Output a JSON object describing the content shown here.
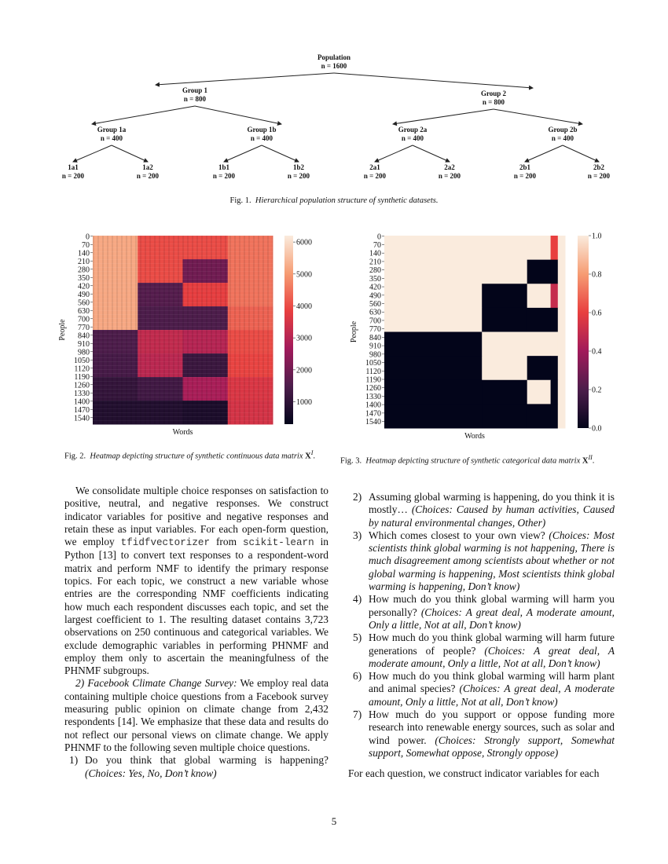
{
  "fig1": {
    "nodes": [
      {
        "id": "pop",
        "name": "Population",
        "n": "n = 1600"
      },
      {
        "id": "g1",
        "name": "Group 1",
        "n": "n = 800"
      },
      {
        "id": "g2",
        "name": "Group 2",
        "n": "n = 800"
      },
      {
        "id": "g1a",
        "name": "Group 1a",
        "n": "n = 400"
      },
      {
        "id": "g1b",
        "name": "Group 1b",
        "n": "n = 400"
      },
      {
        "id": "g2a",
        "name": "Group 2a",
        "n": "n = 400"
      },
      {
        "id": "g2b",
        "name": "Group 2b",
        "n": "n = 400"
      },
      {
        "id": "1a1",
        "name": "1a1",
        "n": "n = 200"
      },
      {
        "id": "1a2",
        "name": "1a2",
        "n": "n = 200"
      },
      {
        "id": "1b1",
        "name": "1b1",
        "n": "n = 200"
      },
      {
        "id": "1b2",
        "name": "1b2",
        "n": "n = 200"
      },
      {
        "id": "2a1",
        "name": "2a1",
        "n": "n = 200"
      },
      {
        "id": "2a2",
        "name": "2a2",
        "n": "n = 200"
      },
      {
        "id": "2b1",
        "name": "2b1",
        "n": "n = 200"
      },
      {
        "id": "2b2",
        "name": "2b2",
        "n": "n = 200"
      }
    ],
    "edges": [
      [
        "pop",
        "g1"
      ],
      [
        "pop",
        "g2"
      ],
      [
        "g1",
        "g1a"
      ],
      [
        "g1",
        "g1b"
      ],
      [
        "g2",
        "g2a"
      ],
      [
        "g2",
        "g2b"
      ],
      [
        "g1a",
        "1a1"
      ],
      [
        "g1a",
        "1a2"
      ],
      [
        "g1b",
        "1b1"
      ],
      [
        "g1b",
        "1b2"
      ],
      [
        "g2a",
        "2a1"
      ],
      [
        "g2a",
        "2a2"
      ],
      [
        "g2b",
        "2b1"
      ],
      [
        "g2b",
        "2b2"
      ]
    ],
    "caption_label": "Fig. 1.",
    "caption_text": "Hierarchical population structure of synthetic datasets."
  },
  "chart_data": [
    {
      "type": "heatmap",
      "title": "",
      "xlabel": "Words",
      "ylabel": "People",
      "yticks": [
        "0",
        "70",
        "140",
        "210",
        "280",
        "350",
        "420",
        "490",
        "560",
        "630",
        "700",
        "770",
        "840",
        "910",
        "980",
        "1050",
        "1120",
        "1190",
        "1260",
        "1330",
        "1400",
        "1470",
        "1540"
      ],
      "colorbar_ticks": [
        "6000",
        "5000",
        "4000",
        "3000",
        "2000",
        "1000"
      ],
      "colorbar_range": [
        300,
        6200
      ],
      "row_bands": [
        0,
        200,
        400,
        600,
        800,
        1000,
        1200,
        1400,
        1600
      ],
      "col_bands_fraction": [
        0,
        0.25,
        0.5,
        0.75,
        1
      ],
      "values": [
        [
          5200,
          4000,
          4000,
          4500
        ],
        [
          5200,
          4000,
          2000,
          4500
        ],
        [
          5200,
          1600,
          3800,
          4500
        ],
        [
          5200,
          1500,
          1500,
          4300
        ],
        [
          1500,
          3200,
          3000,
          4000
        ],
        [
          1400,
          3100,
          1200,
          3900
        ],
        [
          1100,
          1300,
          2800,
          3600
        ],
        [
          800,
          800,
          700,
          3500
        ]
      ],
      "caption_label": "Fig. 2.",
      "caption_text": "Heatmap depicting structure of synthetic continuous data matrix ",
      "caption_symbol": "X",
      "caption_sup": "I"
    },
    {
      "type": "heatmap",
      "title": "",
      "xlabel": "Words",
      "ylabel": "People",
      "yticks": [
        "0",
        "70",
        "140",
        "210",
        "280",
        "350",
        "420",
        "490",
        "560",
        "630",
        "700",
        "770",
        "840",
        "910",
        "980",
        "1050",
        "1120",
        "1190",
        "1260",
        "1330",
        "1400",
        "1470",
        "1540"
      ],
      "colorbar_ticks": [
        "1.0",
        "0.8",
        "0.6",
        "0.4",
        "0.2",
        "0.0"
      ],
      "colorbar_range": [
        0,
        1
      ],
      "row_bands": [
        0,
        200,
        400,
        600,
        800,
        1000,
        1200,
        1400,
        1600
      ],
      "col_bands_fraction": [
        0,
        0.54,
        0.79,
        0.92,
        0.96,
        1
      ],
      "values": [
        [
          1,
          1,
          1,
          0.6,
          1
        ],
        [
          1,
          1,
          0,
          0,
          1
        ],
        [
          1,
          0,
          1,
          0.5,
          1
        ],
        [
          1,
          0,
          0,
          0,
          1
        ],
        [
          0,
          1,
          1,
          1,
          1
        ],
        [
          0,
          1,
          0,
          0,
          1
        ],
        [
          0,
          0,
          1,
          0,
          1
        ],
        [
          0,
          0,
          0,
          0,
          1
        ]
      ],
      "caption_label": "Fig. 3.",
      "caption_text": "Heatmap depicting structure of synthetic categorical data matrix ",
      "caption_symbol": "X",
      "caption_sup": "II"
    }
  ],
  "left_column": {
    "p1_a": "We consolidate multiple choice responses on satisfaction to positive, neutral, and negative responses. We construct indicator variables for positive and negative responses and retain these as input variables. For each open-form question, we employ ",
    "p1_code1": "tfidfvectorizer",
    "p1_b": " from ",
    "p1_code2": "scikit-learn",
    "p1_c": " in Python [13] to convert text responses to a respondent-word matrix and perform NMF to identify the primary response topics. For each topic, we construct a new variable whose entries are the corresponding NMF coefficients indicating how much each respondent discusses each topic, and set the largest coefficient to 1. The resulting dataset contains 3,723 observations on 250 continuous and categorical variables. We exclude demographic variables in performing PHNMF and employ them only to ascertain the meaningfulness of the PHNMF subgroups.",
    "p2_heading": "2) Facebook Climate Change Survey:",
    "p2_text": " We employ real data containing multiple choice questions from a Facebook survey measuring public opinion on climate change from 2,432 respondents [14]. We emphasize that these data and results do not reflect our personal views on climate change. We apply PHNMF to the following seven multiple choice questions."
  },
  "questions": [
    {
      "num": "1)",
      "text": "Do you think that global warming is happening? ",
      "choices": "(Choices: Yes, No, Don’t know)"
    },
    {
      "num": "2)",
      "text": "Assuming global warming is happening, do you think it is mostly… ",
      "choices": "(Choices: Caused by human activities, Caused by natural environmental changes, Other)"
    },
    {
      "num": "3)",
      "text": "Which comes closest to your own view? ",
      "choices": "(Choices: Most scientists think global warming is not happening, There is much disagreement among scientists about whether or not global warming is happening, Most scientists think global warming is happening, Don’t know)"
    },
    {
      "num": "4)",
      "text": "How much do you think global warming will harm you personally? ",
      "choices": "(Choices: A great deal, A moderate amount, Only a little, Not at all, Don’t know)"
    },
    {
      "num": "5)",
      "text": "How much do you think global warming will harm future generations of people? ",
      "choices": "(Choices: A great deal, A moderate amount, Only a little, Not at all, Don’t know)"
    },
    {
      "num": "6)",
      "text": "How much do you think global warming will harm plant and animal species? ",
      "choices": "(Choices: A great deal, A moderate amount, Only a little, Not at all, Don’t know)"
    },
    {
      "num": "7)",
      "text": "How much do you support or oppose funding more research into renewable energy sources, such as solar and wind power. ",
      "choices": "(Choices: Strongly support, Somewhat support, Somewhat oppose, Strongly oppose)"
    }
  ],
  "right_column": {
    "closing": "For each question, we construct indicator variables for each"
  },
  "page_number": "5"
}
